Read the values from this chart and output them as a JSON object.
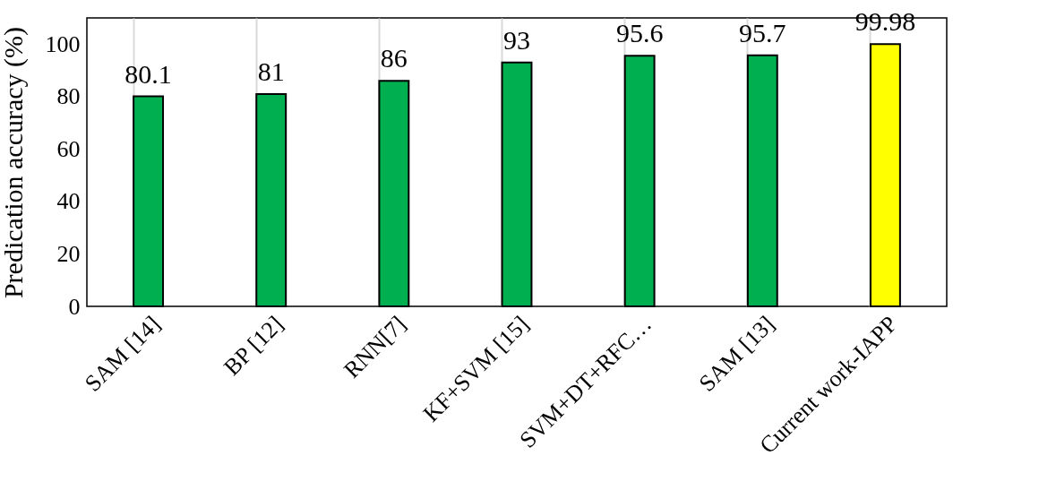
{
  "chart_data": {
    "type": "bar",
    "ylabel": "Predication accuracy (%)",
    "categories": [
      "SAM [14]",
      "BP [12]",
      "RNN[7]",
      "KF+SVM [15]",
      "SVM+DT+RFC…",
      "SAM [13]",
      "Current work-IAPP"
    ],
    "values": [
      80.1,
      81,
      86,
      93,
      95.6,
      95.7,
      99.98
    ],
    "colors": [
      "#00b050",
      "#00b050",
      "#00b050",
      "#00b050",
      "#00b050",
      "#00b050",
      "#ffff00"
    ],
    "ylim": [
      0,
      110
    ],
    "yticks": [
      0,
      20,
      40,
      60,
      80,
      100
    ],
    "grid": "x",
    "data_labels": true
  }
}
